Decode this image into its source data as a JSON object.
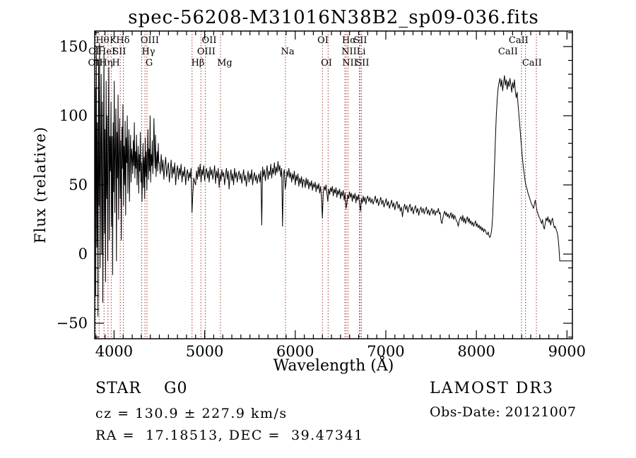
{
  "chart_data": {
    "type": "line",
    "title": "spec-56208-M31016N38B2_sp09-036.fits",
    "xlabel": "Wavelength (Å)",
    "ylabel": "Flux (relative)",
    "xlim": [
      3786,
      9060
    ],
    "ylim": [
      -61.2,
      161.2
    ],
    "x_ticks": [
      4000,
      5000,
      6000,
      7000,
      8000,
      9000
    ],
    "y_ticks": [
      -50,
      0,
      50,
      100,
      150
    ],
    "x_minor_step": 100,
    "y_minor_step": 10,
    "grid": false,
    "legend": "none",
    "spectrum_color": "#000000",
    "marker_color": "#a0352c",
    "spectral_line_markers": [
      3798,
      3835,
      3889,
      3933,
      3968,
      4068,
      4102,
      4305,
      4341,
      4363,
      4861,
      4959,
      5007,
      5175,
      5892,
      6300,
      6363,
      6548,
      6563,
      6583,
      6708,
      6717,
      6731,
      8498,
      8542,
      8662
    ],
    "line_labels": [
      {
        "text": "Hθ",
        "row": 1,
        "wl": 3872
      },
      {
        "text": "K",
        "row": 1,
        "wl": 3989
      },
      {
        "text": "Hδ",
        "row": 1,
        "wl": 4098
      },
      {
        "text": "OIII",
        "row": 1,
        "wl": 4394
      },
      {
        "text": "OII",
        "row": 1,
        "wl": 5050
      },
      {
        "text": "OI",
        "row": 1,
        "wl": 6306
      },
      {
        "text": "Hα",
        "row": 1,
        "wl": 6594
      },
      {
        "text": "SII",
        "row": 1,
        "wl": 6719
      },
      {
        "text": "CaII",
        "row": 1,
        "wl": 8466
      },
      {
        "text": "OI",
        "row": 2,
        "wl": 3778
      },
      {
        "text": "HeI",
        "row": 2,
        "wl": 3919
      },
      {
        "text": "SII",
        "row": 2,
        "wl": 4059
      },
      {
        "text": "Hγ",
        "row": 2,
        "wl": 4379
      },
      {
        "text": "OIII",
        "row": 2,
        "wl": 5018
      },
      {
        "text": "Na",
        "row": 2,
        "wl": 5916
      },
      {
        "text": "NII",
        "row": 2,
        "wl": 6594
      },
      {
        "text": "Li",
        "row": 2,
        "wl": 6727
      },
      {
        "text": "CaII",
        "row": 2,
        "wl": 8349
      },
      {
        "text": "OII",
        "row": 3,
        "wl": 3794
      },
      {
        "text": "Hη",
        "row": 3,
        "wl": 3911
      },
      {
        "text": "H",
        "row": 3,
        "wl": 4020
      },
      {
        "text": "G",
        "row": 3,
        "wl": 4387
      },
      {
        "text": "Hβ",
        "row": 3,
        "wl": 4925
      },
      {
        "text": "Mg",
        "row": 3,
        "wl": 5221
      },
      {
        "text": "OI",
        "row": 3,
        "wl": 6345
      },
      {
        "text": "NII",
        "row": 3,
        "wl": 6602
      },
      {
        "text": "SII",
        "row": 3,
        "wl": 6742
      },
      {
        "text": "CaII",
        "row": 3,
        "wl": 8614
      }
    ],
    "spectrum_segments": [
      {
        "start": 3786,
        "step": 6,
        "flux": [
          25,
          120,
          -30,
          150,
          5,
          95,
          -45,
          140,
          35,
          152,
          -10,
          80,
          130,
          0,
          110,
          -35,
          65,
          145,
          15,
          90,
          -20,
          125,
          40,
          100,
          -5,
          70,
          135,
          10,
          85
        ]
      },
      {
        "start": 3960,
        "step": 6,
        "flux": [
          60,
          110,
          20,
          85,
          -15,
          95,
          45,
          125,
          30,
          75,
          105,
          -5,
          88,
          55,
          115,
          25,
          70,
          98,
          40,
          82,
          10,
          92,
          62,
          108,
          35,
          78,
          50,
          96,
          28,
          84,
          66,
          100,
          44,
          74,
          90,
          38,
          68,
          86,
          52,
          76
        ]
      },
      {
        "start": 4200,
        "step": 6,
        "flux": [
          70,
          58,
          82,
          64,
          95,
          55,
          74,
          62,
          86,
          50,
          68,
          78,
          44,
          72,
          60,
          88,
          52,
          66,
          38,
          58,
          80,
          48,
          70,
          40,
          84,
          56,
          74,
          46,
          68,
          90,
          54,
          76,
          60,
          100,
          52,
          72,
          64,
          82,
          58,
          70,
          98,
          78,
          62,
          86,
          56,
          68,
          74,
          60,
          80,
          66
        ]
      },
      {
        "start": 4500,
        "step": 10,
        "flux": [
          66,
          58,
          72,
          60,
          68,
          54,
          64,
          70,
          56,
          62,
          66,
          52,
          60,
          68,
          55,
          63,
          58,
          66,
          50,
          60,
          64,
          54,
          62,
          57,
          65,
          52,
          60,
          56,
          63,
          50,
          58,
          61,
          53,
          59,
          55,
          62,
          30,
          44,
          55,
          52
        ]
      },
      {
        "start": 4900,
        "step": 10,
        "flux": [
          50,
          60,
          54,
          63,
          56,
          65,
          52,
          61,
          57,
          64,
          53,
          59,
          62,
          55,
          60,
          52,
          63,
          57,
          61,
          54,
          58,
          64,
          51,
          60,
          55,
          62,
          48,
          58,
          53,
          61,
          56,
          59,
          50,
          57,
          62,
          54,
          60,
          47,
          56,
          61,
          53,
          58,
          50,
          62,
          55,
          59,
          52,
          57,
          60,
          54,
          58,
          51,
          56,
          61,
          53,
          57,
          49,
          55,
          60,
          52,
          58,
          54,
          61,
          50,
          56,
          59,
          53,
          57,
          51,
          55
        ]
      },
      {
        "start": 5600,
        "step": 10,
        "flux": [
          58,
          52,
          60,
          21,
          63,
          56,
          61,
          53,
          59,
          64,
          54,
          60,
          57,
          65,
          55,
          62,
          58,
          66,
          57,
          63,
          59,
          67,
          60,
          64,
          56,
          62,
          20,
          58,
          61,
          47,
          52,
          60,
          56,
          62,
          55,
          59,
          52,
          58,
          54,
          60,
          50,
          57,
          53,
          58,
          49,
          55,
          51,
          56,
          48,
          54
        ]
      },
      {
        "start": 6100,
        "step": 10,
        "flux": [
          53,
          48,
          55,
          50,
          54,
          47,
          52,
          49,
          53,
          46,
          51,
          48,
          52,
          45,
          50,
          47,
          51,
          44,
          49,
          40,
          26,
          45,
          49,
          46,
          50,
          44,
          38,
          47,
          43,
          48,
          45,
          49,
          42,
          47,
          44,
          48,
          41,
          46,
          43,
          47,
          40,
          45,
          42,
          46,
          39,
          44,
          33,
          36,
          43,
          40,
          45,
          41,
          44,
          38,
          43,
          40,
          44,
          37,
          42,
          39,
          43,
          36,
          31,
          40,
          37,
          42,
          38,
          41,
          36,
          40
        ]
      },
      {
        "start": 6800,
        "step": 12,
        "flux": [
          42,
          38,
          41,
          37,
          40,
          36,
          39,
          42,
          37,
          40,
          35,
          38,
          41,
          36,
          39,
          34,
          37,
          40,
          35,
          38,
          33,
          36,
          39,
          34,
          37,
          32,
          36,
          38,
          33,
          36,
          31,
          34,
          27,
          33,
          36,
          32,
          35,
          30,
          34,
          36,
          31,
          34,
          29,
          33,
          35,
          30,
          33,
          28,
          32,
          34,
          30,
          33,
          29,
          32,
          34,
          29,
          32,
          28,
          31,
          33,
          29,
          32,
          28,
          31,
          30,
          33,
          29
        ]
      },
      {
        "start": 7600,
        "step": 10,
        "flux": [
          30,
          24,
          22,
          26,
          29,
          31,
          28,
          30,
          27,
          29,
          26,
          28,
          30,
          26,
          29,
          25,
          28,
          26,
          24,
          23,
          20,
          24,
          26,
          27,
          24,
          28,
          23,
          26,
          22,
          25,
          27,
          23,
          26,
          22,
          24,
          21,
          23,
          20,
          22,
          24,
          20,
          22,
          19,
          21,
          18,
          20,
          17,
          19,
          16,
          18
        ]
      },
      {
        "start": 8100,
        "step": 10,
        "flux": [
          17,
          15,
          14,
          16,
          13,
          12,
          14,
          18,
          28,
          45,
          64,
          84,
          100,
          112,
          120,
          124
        ]
      },
      {
        "start": 8260,
        "step": 10,
        "flux": [
          127,
          121,
          126,
          118,
          124,
          129,
          122,
          126,
          119,
          125,
          121,
          127,
          123,
          117,
          124,
          120,
          126,
          118,
          113,
          117,
          108
        ]
      },
      {
        "start": 8470,
        "step": 10,
        "flux": [
          100,
          92,
          84,
          76,
          68,
          62,
          57,
          52,
          49,
          47,
          44,
          42,
          40,
          38,
          36,
          35,
          33,
          36,
          39,
          35,
          31,
          29,
          27,
          26
        ]
      },
      {
        "start": 8710,
        "step": 10,
        "flux": [
          24,
          22,
          25,
          20,
          18,
          22,
          26,
          24,
          27,
          23,
          25,
          21,
          24,
          26,
          22,
          19,
          20,
          18,
          16,
          13,
          6,
          -5
        ]
      },
      {
        "start": 8930,
        "step": 10,
        "flux": [
          -5,
          -5,
          -5,
          -5,
          -5,
          -5,
          -5,
          -5,
          -5,
          -5,
          -5,
          -5,
          -5,
          -5
        ]
      }
    ]
  },
  "footer": {
    "class_line": "STAR    G0",
    "survey": "LAMOST DR3",
    "cz_line": "cz = 130.9 ± 227.9 km/s",
    "obs_line": "Obs-Date: 20121007",
    "radec_line": "RA =  17.18513, DEC =  39.47341"
  }
}
